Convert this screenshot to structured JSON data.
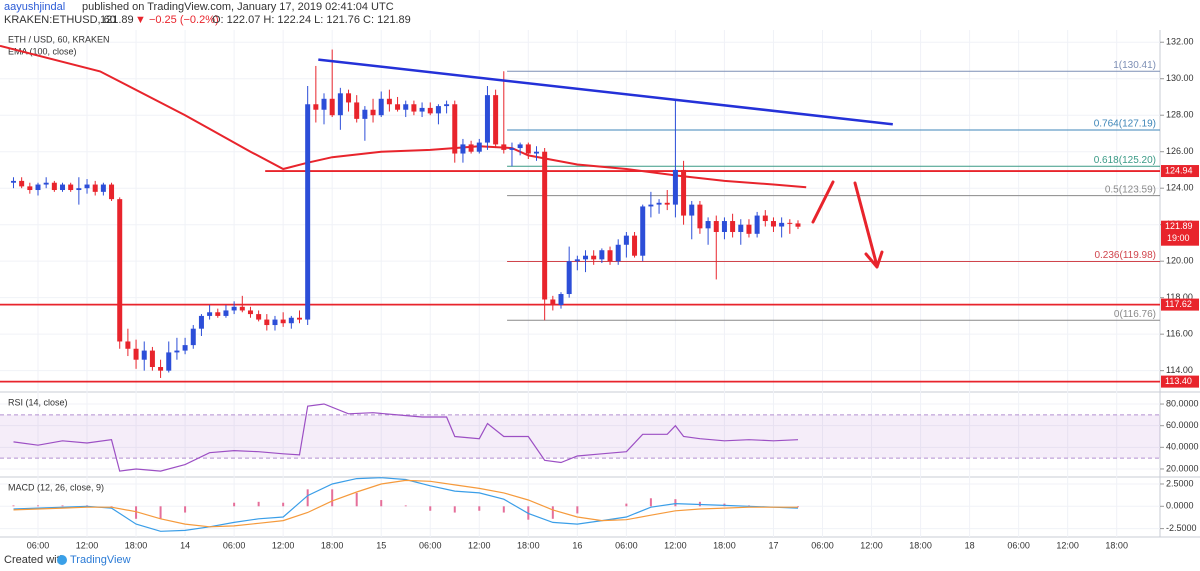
{
  "header": {
    "author": "aayushjindal",
    "published": "published on TradingView.com, January 17, 2019 02:41:04 UTC",
    "symbol": "KRAKEN:ETHUSD, 60",
    "price": "121.89",
    "change": "▼ −0.25 (−0.2%)",
    "ohlc": "O: 122.07 H: 122.24 L: 121.76 C: 121.89"
  },
  "footer": {
    "created": "Created with",
    "brand": "TradingView"
  },
  "chart_data": [
    {
      "type": "candlestick",
      "title": "ETH / USD, 60, KRAKEN",
      "indicator": "EMA (100, close)",
      "xlim": [
        1.35,
        143.3
      ],
      "ylim": [
        112.94,
        132.67
      ],
      "grid": true,
      "xticks": [
        {
          "value": 6,
          "label": "06:00"
        },
        {
          "value": 12,
          "label": "12:00"
        },
        {
          "value": 18,
          "label": "18:00"
        },
        {
          "value": 24,
          "label": "14"
        },
        {
          "value": 30,
          "label": "06:00"
        },
        {
          "value": 36,
          "label": "12:00"
        },
        {
          "value": 42,
          "label": "18:00"
        },
        {
          "value": 48,
          "label": "15"
        },
        {
          "value": 54,
          "label": "06:00"
        },
        {
          "value": 60,
          "label": "12:00"
        },
        {
          "value": 66,
          "label": "18:00"
        },
        {
          "value": 72,
          "label": "16"
        },
        {
          "value": 78,
          "label": "06:00"
        },
        {
          "value": 84,
          "label": "12:00"
        },
        {
          "value": 90,
          "label": "18:00"
        },
        {
          "value": 96,
          "label": "17"
        },
        {
          "value": 102,
          "label": "06:00"
        },
        {
          "value": 108,
          "label": "12:00"
        },
        {
          "value": 114,
          "label": "18:00"
        },
        {
          "value": 120,
          "label": "18"
        },
        {
          "value": 126,
          "label": "06:00"
        },
        {
          "value": 132,
          "label": "12:00"
        },
        {
          "value": 138,
          "label": "18:00"
        }
      ],
      "yticks": [
        {
          "value": 132,
          "label": "132.00"
        },
        {
          "value": 130,
          "label": "130.00"
        },
        {
          "value": 128,
          "label": "128.00"
        },
        {
          "value": 126,
          "label": "126.00"
        },
        {
          "value": 124,
          "label": "124.00"
        },
        {
          "value": 122,
          "label": "122.00"
        },
        {
          "value": 120,
          "label": "120.00"
        },
        {
          "value": 118,
          "label": "118.00"
        },
        {
          "value": 116,
          "label": "116.00"
        },
        {
          "value": 114,
          "label": "114.00"
        }
      ],
      "up_color": "#2c4ed8",
      "down_color": "#e8242c",
      "x": [
        3,
        4,
        5,
        6,
        7,
        8,
        9,
        10,
        11,
        12,
        13,
        14,
        15,
        16,
        17,
        18,
        19,
        20,
        21,
        22,
        23,
        24,
        25,
        26,
        27,
        28,
        29,
        30,
        31,
        32,
        33,
        34,
        35,
        36,
        37,
        38,
        39,
        40,
        41,
        42,
        43,
        44,
        45,
        46,
        47,
        48,
        49,
        50,
        51,
        52,
        53,
        54,
        55,
        56,
        57,
        58,
        59,
        60,
        61,
        62,
        63,
        64,
        65,
        66,
        67,
        68,
        69,
        70,
        71,
        72,
        73,
        74,
        75,
        76,
        77,
        78,
        79,
        80,
        81,
        82,
        83,
        84,
        85,
        86,
        87,
        88,
        89,
        90,
        91,
        92,
        93,
        94,
        95,
        96,
        97,
        98,
        99
      ],
      "open": [
        124.3,
        124.4,
        124.1,
        123.9,
        124.2,
        124.3,
        123.9,
        124.2,
        123.9,
        124.0,
        124.2,
        123.8,
        124.2,
        123.4,
        115.6,
        115.2,
        114.6,
        115.1,
        114.2,
        114.0,
        115.0,
        115.1,
        115.4,
        116.3,
        117.0,
        117.2,
        117.0,
        117.3,
        117.5,
        117.3,
        117.1,
        116.8,
        116.5,
        116.8,
        116.6,
        116.9,
        116.8,
        128.6,
        128.3,
        128.9,
        128.0,
        129.2,
        128.7,
        127.8,
        128.3,
        128.0,
        128.9,
        128.6,
        128.3,
        128.6,
        128.2,
        128.4,
        128.1,
        128.5,
        128.6,
        125.9,
        126.4,
        126.0,
        126.5,
        129.1,
        126.4,
        126.1,
        126.2,
        126.4,
        125.9,
        126.0,
        117.9,
        117.6,
        118.2,
        120.0,
        120.1,
        120.3,
        120.1,
        120.6,
        120.0,
        120.9,
        121.4,
        120.3,
        123.0,
        123.1,
        123.2,
        123.1,
        125.0,
        122.5,
        123.1,
        121.8,
        122.2,
        121.6,
        122.2,
        121.6,
        122.0,
        121.5,
        122.5,
        122.2,
        121.9,
        122.1,
        122.07
      ],
      "high": [
        124.6,
        124.6,
        124.3,
        124.3,
        124.6,
        124.4,
        124.3,
        124.3,
        124.6,
        124.5,
        124.4,
        124.3,
        124.3,
        123.5,
        116.3,
        115.7,
        115.6,
        115.3,
        114.6,
        115.6,
        115.8,
        115.8,
        116.5,
        117.1,
        117.6,
        117.4,
        117.6,
        117.8,
        118.1,
        117.5,
        117.3,
        117.1,
        117.0,
        117.2,
        117.0,
        117.3,
        129.6,
        130.7,
        129.2,
        131.6,
        129.5,
        129.4,
        129.1,
        128.5,
        128.9,
        129.3,
        129.4,
        129.0,
        128.8,
        128.8,
        128.7,
        128.7,
        128.6,
        128.8,
        128.8,
        126.7,
        126.6,
        126.7,
        129.6,
        129.4,
        130.41,
        126.5,
        126.5,
        126.5,
        126.3,
        126.2,
        118.1,
        118.3,
        120.8,
        120.3,
        120.6,
        120.6,
        120.7,
        120.8,
        121.2,
        121.6,
        121.6,
        123.1,
        123.8,
        123.4,
        123.9,
        128.8,
        125.5,
        123.3,
        123.3,
        122.4,
        122.5,
        122.4,
        122.6,
        122.3,
        122.3,
        122.7,
        122.8,
        122.4,
        122.4,
        122.3,
        122.24
      ],
      "low": [
        124.0,
        124.0,
        123.7,
        123.6,
        124.0,
        123.8,
        123.8,
        123.8,
        123.1,
        123.7,
        123.6,
        123.6,
        123.3,
        115.2,
        114.8,
        114.1,
        114.0,
        114.0,
        113.6,
        113.9,
        114.6,
        114.9,
        115.2,
        115.9,
        116.8,
        116.9,
        116.9,
        117.1,
        117.2,
        116.9,
        116.7,
        116.2,
        116.2,
        116.4,
        116.3,
        116.6,
        116.5,
        127.6,
        127.5,
        127.9,
        127.2,
        128.2,
        127.6,
        126.6,
        127.6,
        127.9,
        128.2,
        128.2,
        127.9,
        128.0,
        127.9,
        128.0,
        127.5,
        128.1,
        125.4,
        125.4,
        125.9,
        125.9,
        126.1,
        126.2,
        125.9,
        125.2,
        125.8,
        125.6,
        125.5,
        116.76,
        117.3,
        117.4,
        118.0,
        119.5,
        119.4,
        119.8,
        119.9,
        119.8,
        119.8,
        120.2,
        120.2,
        120.0,
        122.4,
        122.6,
        122.8,
        122.4,
        122.0,
        121.2,
        121.5,
        120.9,
        119.0,
        121.2,
        121.3,
        120.9,
        121.3,
        121.3,
        121.9,
        121.6,
        121.3,
        121.5,
        121.76
      ],
      "close": [
        124.4,
        124.1,
        123.9,
        124.2,
        124.3,
        123.9,
        124.2,
        123.9,
        124.0,
        124.2,
        123.8,
        124.2,
        123.4,
        115.6,
        115.2,
        114.6,
        115.1,
        114.2,
        114.0,
        115.0,
        115.1,
        115.4,
        116.3,
        117.0,
        117.2,
        117.0,
        117.3,
        117.5,
        117.3,
        117.1,
        116.8,
        116.5,
        116.8,
        116.6,
        116.9,
        116.8,
        128.6,
        128.3,
        128.9,
        128.0,
        129.2,
        128.7,
        127.8,
        128.3,
        128.0,
        128.9,
        128.6,
        128.3,
        128.6,
        128.2,
        128.4,
        128.1,
        128.5,
        128.6,
        125.9,
        126.4,
        126.0,
        126.5,
        129.1,
        126.4,
        126.1,
        126.2,
        126.4,
        125.9,
        126.0,
        117.9,
        117.6,
        118.2,
        120.0,
        120.1,
        120.3,
        120.1,
        120.6,
        120.0,
        120.9,
        121.4,
        120.3,
        123.0,
        123.1,
        123.2,
        123.1,
        125.0,
        122.5,
        123.1,
        121.8,
        122.2,
        121.6,
        122.2,
        121.6,
        122.0,
        121.5,
        122.5,
        122.2,
        121.9,
        122.1,
        122.07,
        121.89
      ],
      "ema": {
        "color": "#e8242c",
        "x": [
          1.35,
          13.6,
          24,
          32,
          36,
          39,
          42,
          48,
          54,
          60,
          64,
          66,
          72,
          78,
          84,
          90,
          96,
          100
        ],
        "values": [
          131.8,
          130.4,
          128,
          126,
          125.05,
          125.4,
          125.7,
          126,
          126.1,
          126.3,
          126.2,
          125.8,
          125.3,
          125.05,
          124.7,
          124.4,
          124.2,
          124.05
        ]
      },
      "trendline": {
        "color": "#2431d8",
        "x": [
          40.3,
          110.6
        ],
        "values": [
          131.05,
          127.5
        ]
      },
      "fib": {
        "x_start": 63.4,
        "levels": [
          {
            "value": 130.41,
            "label": "1(130.41)",
            "color": "#7d8fb5"
          },
          {
            "value": 127.19,
            "label": "0.764(127.19)",
            "color": "#3e86b8"
          },
          {
            "value": 125.2,
            "label": "0.618(125.20)",
            "color": "#3a9a86"
          },
          {
            "value": 123.59,
            "label": "0.5(123.59)",
            "color": "#8a8a8a"
          },
          {
            "value": 119.98,
            "label": "0.236(119.98)",
            "color": "#d0454c"
          },
          {
            "value": 116.76,
            "label": "0(116.76)",
            "color": "#8a8a8a"
          }
        ]
      },
      "hlines": [
        {
          "value": 124.94,
          "label": "124.94",
          "x_start": 33.8,
          "color": "#e8242c"
        },
        {
          "value": 117.62,
          "label": "117.62",
          "x_start": 1.35,
          "color": "#e8242c"
        },
        {
          "value": 113.4,
          "label": "113.40",
          "x_start": 1.35,
          "color": "#e8242c"
        }
      ],
      "last_price": {
        "value": 121.89,
        "label": "121.89",
        "countdown": "19:00",
        "color": "#e8242c"
      }
    },
    {
      "type": "line",
      "title": "RSI (14, close)",
      "ylim": [
        13.5,
        90.2
      ],
      "band": [
        30,
        70
      ],
      "color": "#9c4fc4",
      "yticks": [
        {
          "value": 80,
          "label": "80.0000"
        },
        {
          "value": 60,
          "label": "60.0000"
        },
        {
          "value": 40,
          "label": "40.0000"
        },
        {
          "value": 20,
          "label": "20.0000"
        }
      ],
      "x": [
        3,
        6,
        9,
        12,
        15,
        16,
        18,
        21,
        24,
        27,
        30,
        33,
        36,
        38,
        39,
        41,
        44,
        47,
        50,
        53,
        56,
        57,
        60,
        61,
        63,
        66,
        68,
        70,
        72,
        75,
        78,
        80,
        83,
        84,
        85,
        87,
        90,
        93,
        96,
        99
      ],
      "values": [
        45,
        42,
        46,
        44,
        47,
        18,
        20,
        18,
        24,
        35,
        37,
        36,
        34,
        33,
        78,
        80,
        71,
        72,
        70,
        68,
        68,
        50,
        48,
        62,
        50,
        50,
        28,
        26,
        32,
        34,
        36,
        52,
        52,
        60,
        50,
        48,
        46,
        47,
        46,
        47
      ]
    },
    {
      "type": "macd",
      "title": "MACD (12, 26, close, 9)",
      "ylim": [
        -3.44,
        3.17
      ],
      "yticks": [
        {
          "value": 2.5,
          "label": "2.5000"
        },
        {
          "value": 0,
          "label": "0.0000"
        },
        {
          "value": -2.5,
          "label": "-2.5000"
        }
      ],
      "x": [
        3,
        6,
        9,
        12,
        15,
        18,
        21,
        24,
        27,
        30,
        33,
        36,
        39,
        42,
        45,
        48,
        51,
        54,
        57,
        60,
        63,
        66,
        69,
        72,
        75,
        78,
        81,
        84,
        87,
        90,
        93,
        96,
        99
      ],
      "series": [
        {
          "name": "MACD",
          "color": "#3a9ee8",
          "values": [
            -0.3,
            -0.2,
            -0.1,
            0,
            -0.2,
            -2.0,
            -2.8,
            -2.7,
            -2.3,
            -1.8,
            -1.4,
            -1.2,
            1.2,
            2.5,
            3.1,
            3.2,
            3.0,
            2.3,
            1.7,
            1.5,
            0.8,
            -0.8,
            -1.8,
            -2.0,
            -1.6,
            -1.2,
            -0.1,
            0.3,
            0.2,
            0.1,
            0.0,
            -0.1,
            -0.2
          ]
        },
        {
          "name": "Signal",
          "color": "#f59a3c",
          "values": [
            -0.4,
            -0.3,
            -0.2,
            -0.1,
            -0.1,
            -0.6,
            -1.4,
            -2.0,
            -2.3,
            -2.2,
            -1.9,
            -1.6,
            -0.7,
            0.6,
            1.6,
            2.5,
            2.9,
            2.8,
            2.4,
            2.0,
            1.5,
            0.7,
            -0.4,
            -1.2,
            -1.6,
            -1.5,
            -1.0,
            -0.5,
            -0.3,
            -0.2,
            -0.1,
            -0.1,
            -0.1
          ]
        }
      ],
      "histogram": {
        "color": "#e56f9a",
        "values": [
          0.1,
          0.1,
          0.1,
          0.1,
          -0.1,
          -1.4,
          -1.4,
          -0.7,
          0,
          0.4,
          0.5,
          0.4,
          1.9,
          1.9,
          1.5,
          0.7,
          0.1,
          -0.5,
          -0.7,
          -0.5,
          -0.7,
          -1.5,
          -1.4,
          -0.8,
          0,
          0.3,
          0.9,
          0.8,
          0.5,
          0.3,
          0.1,
          0,
          -0.1
        ]
      }
    }
  ]
}
